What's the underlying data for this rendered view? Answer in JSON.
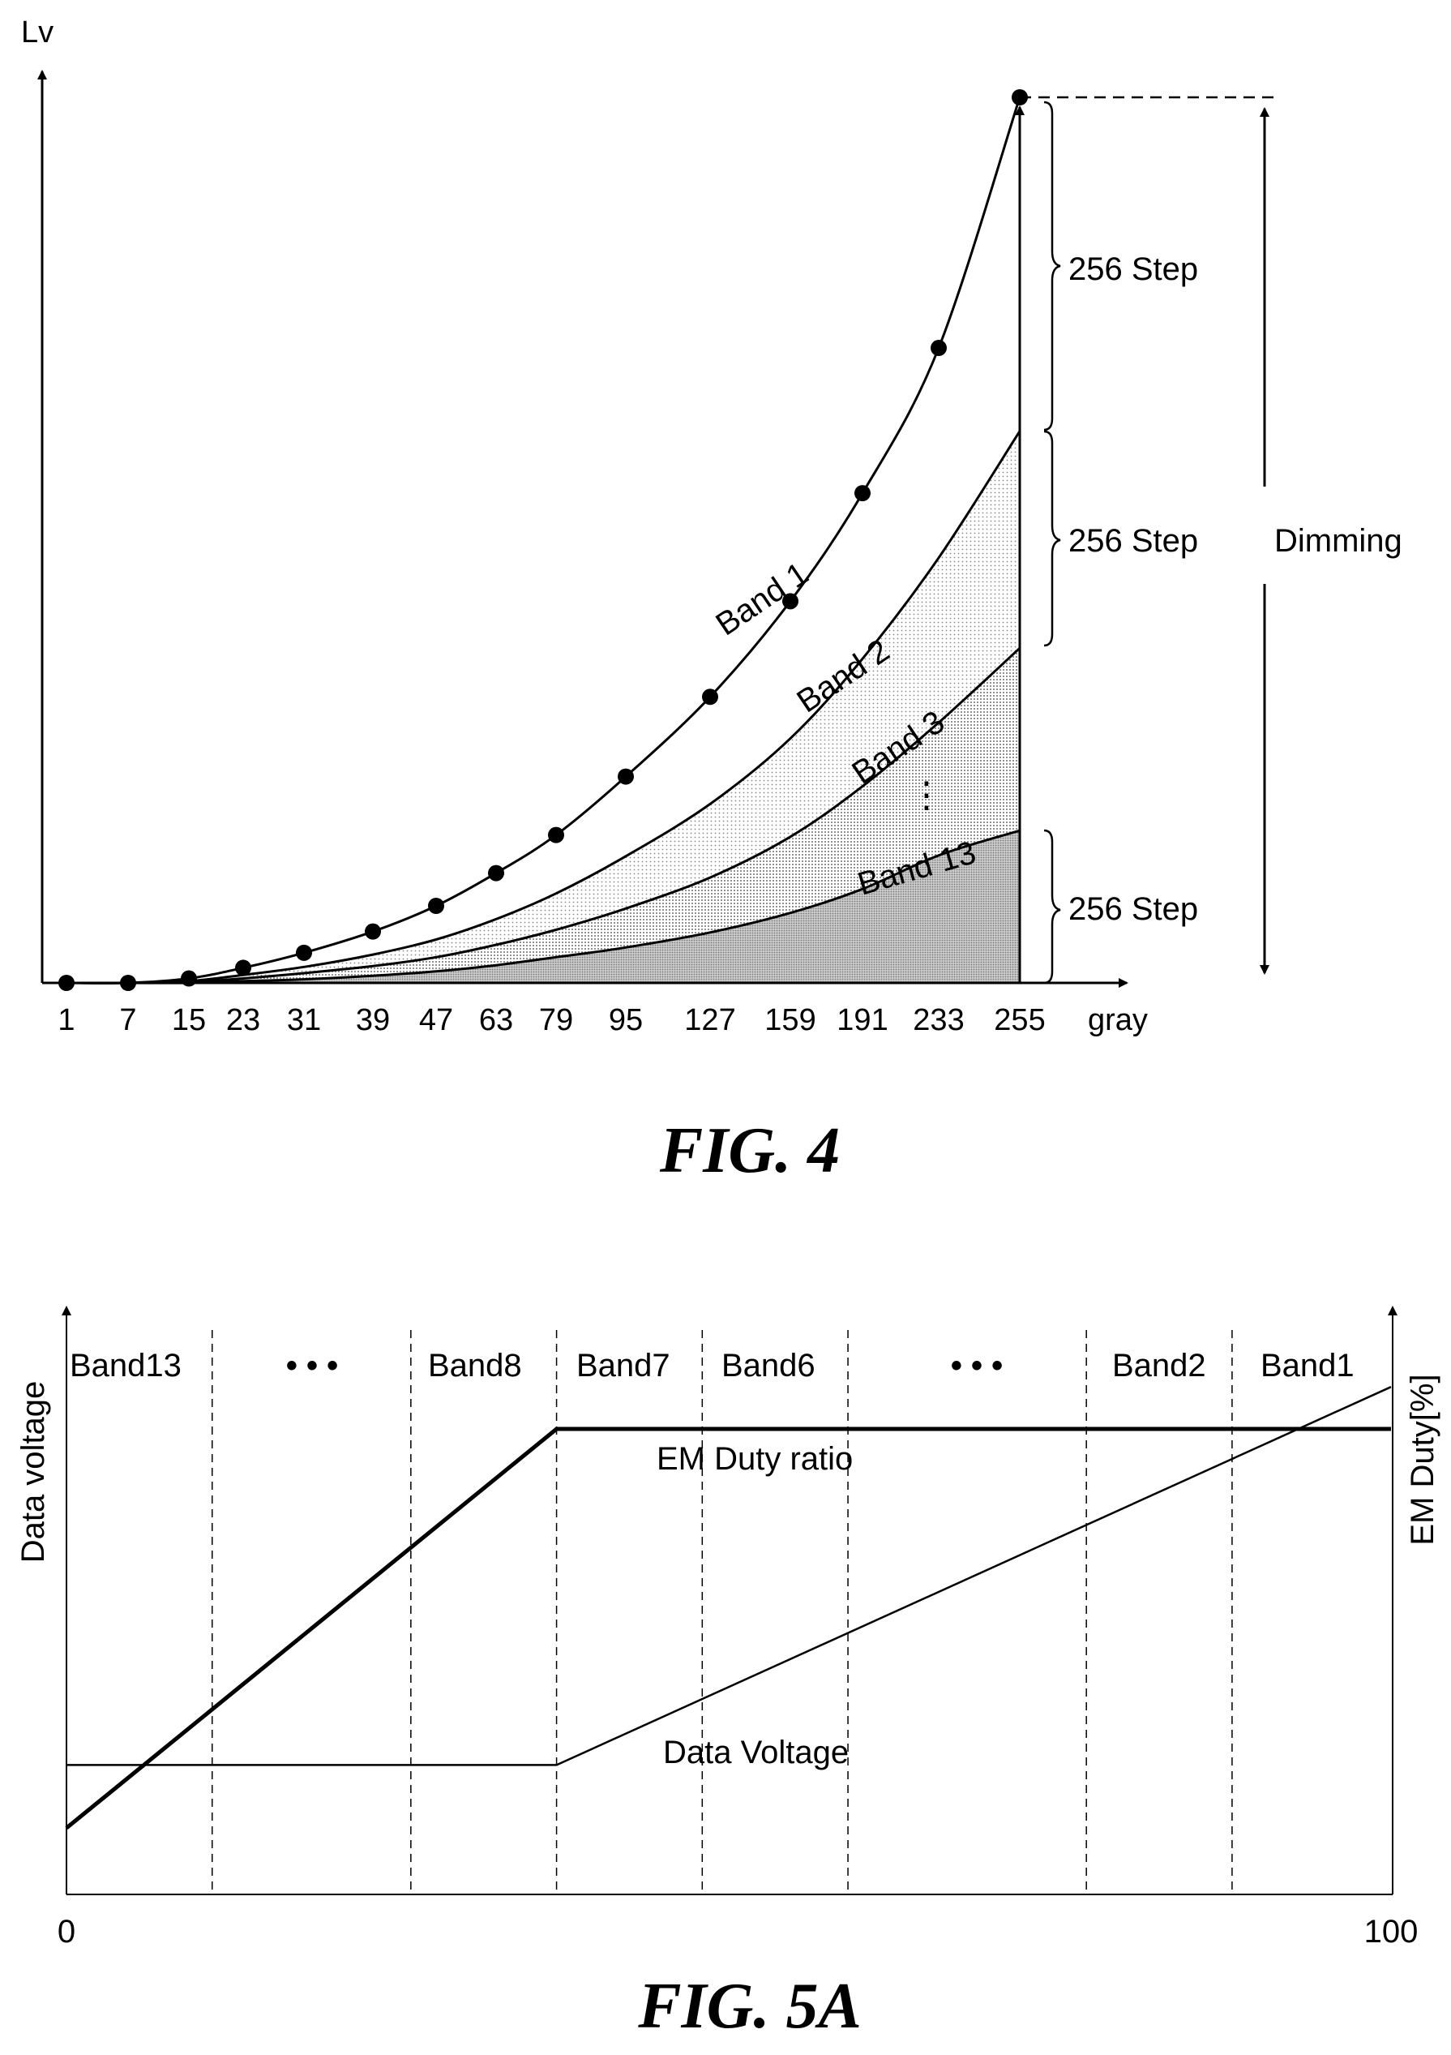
{
  "figures": [
    {
      "caption": "FIG. 4",
      "y_axis_label": "Lv",
      "x_axis_label": "gray",
      "x_ticks": [
        "1",
        "7",
        "15",
        "23",
        "31",
        "39",
        "47",
        "63",
        "79",
        "95",
        "127",
        "159",
        "191",
        "233",
        "255"
      ],
      "band_labels": [
        "Band 1",
        "Band 2",
        "Band 3",
        "Band 13"
      ],
      "ellipsis": "⋮",
      "step_labels": [
        "256 Step",
        "256 Step",
        "256 Step"
      ],
      "dimming_label": "Dimming"
    },
    {
      "caption": "FIG. 5A",
      "y_left_label": "Data voltage",
      "y_right_label": "EM Duty[%]",
      "x_min_label": "0",
      "x_max_label": "100",
      "band_labels": [
        "Band13",
        "Band8",
        "Band7",
        "Band6",
        "Band2",
        "Band1"
      ],
      "ellipses": [
        "• • •",
        "• • •"
      ],
      "curve_labels": {
        "em_duty": "EM Duty ratio",
        "data_voltage": "Data Voltage"
      }
    }
  ],
  "chart_data": [
    {
      "type": "line",
      "title": "FIG. 4",
      "xlabel": "gray",
      "ylabel": "Lv",
      "categories": [
        "1",
        "7",
        "15",
        "23",
        "31",
        "39",
        "47",
        "63",
        "79",
        "95",
        "127",
        "159",
        "191",
        "233",
        "255"
      ],
      "series": [
        {
          "name": "Band 1",
          "values": [
            0,
            0,
            0.005,
            0.017,
            0.034,
            0.058,
            0.087,
            0.124,
            0.167,
            0.233,
            0.323,
            0.431,
            0.553,
            0.717,
            1.0
          ]
        },
        {
          "name": "Band 2",
          "values": [
            0,
            0,
            0.002,
            0.009,
            0.018,
            0.032,
            0.049,
            0.072,
            0.101,
            0.143,
            0.202,
            0.276,
            0.366,
            0.48,
            0.623
          ]
        },
        {
          "name": "Band 3",
          "values": [
            0,
            0,
            0.001,
            0.005,
            0.011,
            0.019,
            0.029,
            0.043,
            0.06,
            0.084,
            0.119,
            0.165,
            0.222,
            0.294,
            0.378
          ]
        },
        {
          "name": "Band 13",
          "values": [
            0,
            0,
            0,
            0.002,
            0.004,
            0.008,
            0.013,
            0.02,
            0.029,
            0.04,
            0.057,
            0.079,
            0.106,
            0.144,
            0.172
          ]
        }
      ],
      "dot_series": "Band 1"
    },
    {
      "type": "line",
      "title": "FIG. 5A",
      "xlabel": "",
      "ylabel": "Data voltage",
      "ylabel_right": "EM Duty[%]",
      "xlim": [
        0,
        100
      ],
      "band_boundaries": [
        11,
        26,
        37,
        48,
        59,
        77,
        88
      ],
      "series": [
        {
          "name": "EM Duty ratio",
          "points": [
            [
              0,
              0.05
            ],
            [
              37,
              1.0
            ],
            [
              100,
              1.0
            ]
          ]
        },
        {
          "name": "Data Voltage",
          "points": [
            [
              0,
              0.2
            ],
            [
              37,
              0.2
            ],
            [
              100,
              1.1
            ]
          ]
        }
      ]
    }
  ]
}
